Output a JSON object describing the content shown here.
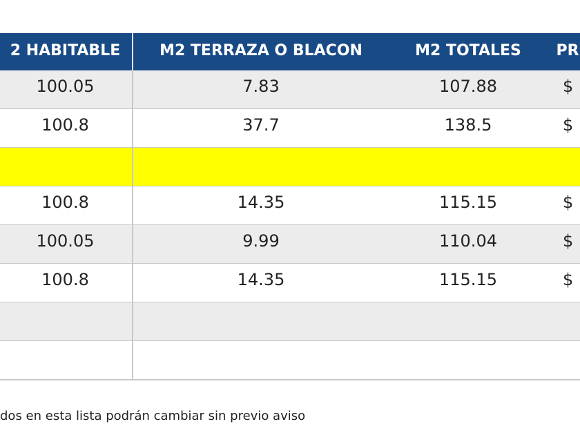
{
  "table": {
    "header": [
      "2 HABITABLE",
      "M2 TERRAZA O BLACON",
      "M2 TOTALES",
      "PR"
    ],
    "rows": [
      [
        "100.05",
        "7.83",
        "107.88",
        "$"
      ],
      [
        "100.8",
        "37.7",
        "138.5",
        "$"
      ],
      [
        "100.8",
        "14.35",
        "115.15",
        "$"
      ],
      [
        "100.05",
        "9.99",
        "110.04",
        "$"
      ],
      [
        "100.8",
        "14.35",
        "115.15",
        "$"
      ]
    ]
  },
  "footer": {
    "note": "dos en esta lista podrán cambiar sin previo aviso"
  }
}
